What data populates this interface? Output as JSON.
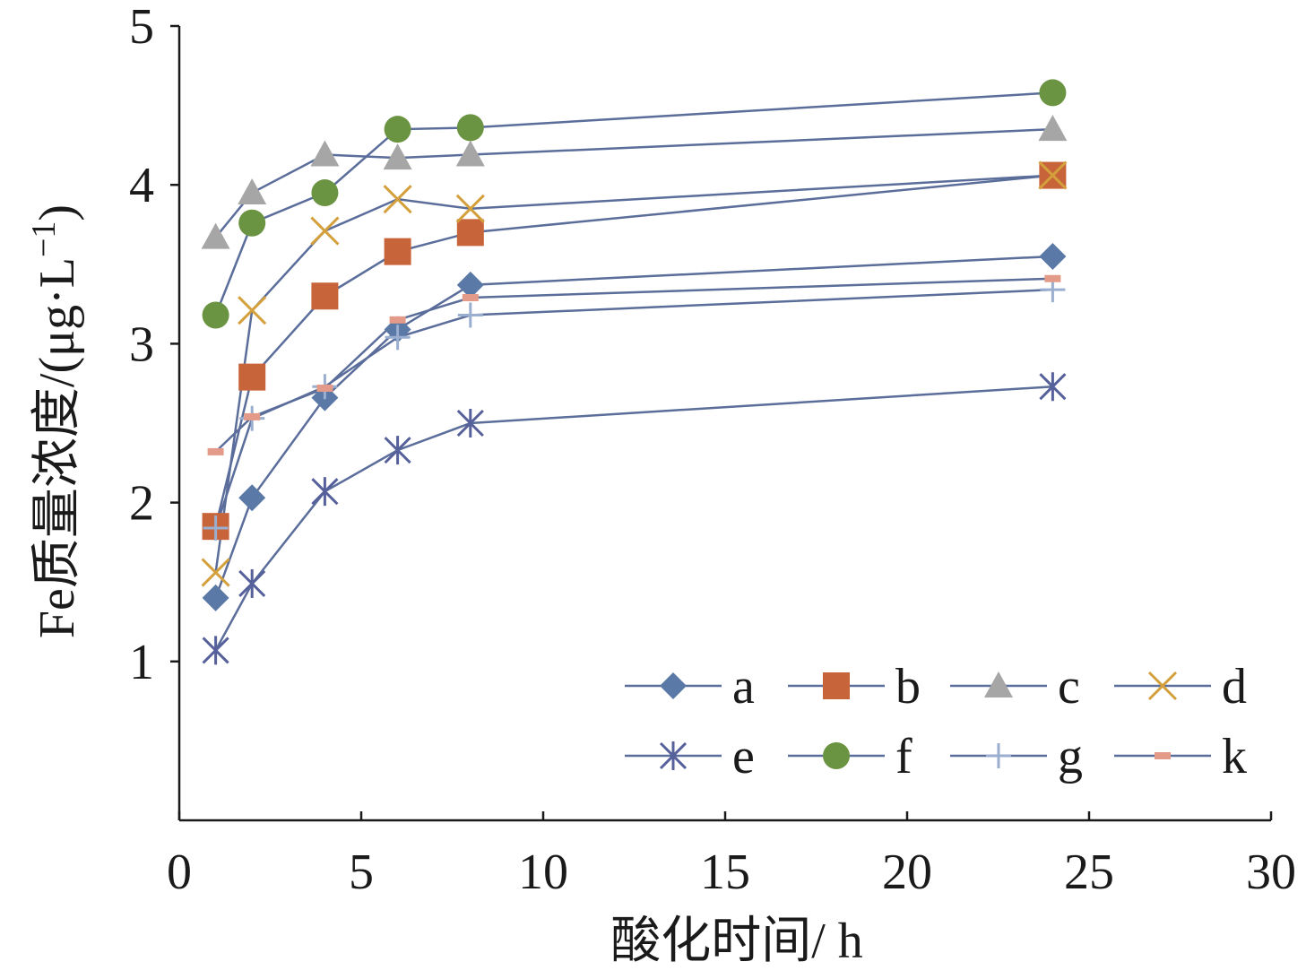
{
  "chart_data": {
    "type": "line",
    "xlabel": "酸化时间/ h",
    "ylabel": "Fe质量浓度/(μg·L",
    "ylabel_sup": "−1",
    "ylabel_close": ")",
    "xlim": [
      0,
      30
    ],
    "ylim": [
      0,
      5
    ],
    "xticks": [
      0,
      5,
      10,
      15,
      20,
      25,
      30
    ],
    "yticks": [
      1,
      2,
      3,
      4,
      5
    ],
    "grid": false,
    "legend_position": "bottom-right",
    "line_color": "#5b6d9a",
    "series": [
      {
        "name": "a",
        "marker": "diamond",
        "marker_color": "#5b79a6",
        "x": [
          1,
          2,
          4,
          6,
          8,
          24
        ],
        "y": [
          1.4,
          2.03,
          2.66,
          3.09,
          3.37,
          3.55
        ]
      },
      {
        "name": "b",
        "marker": "square",
        "marker_color": "#c8643a",
        "x": [
          1,
          2,
          4,
          6,
          8,
          24
        ],
        "y": [
          1.85,
          2.79,
          3.3,
          3.58,
          3.7,
          4.06
        ]
      },
      {
        "name": "c",
        "marker": "triangle",
        "marker_color": "#a6a6a6",
        "x": [
          1,
          2,
          4,
          6,
          8,
          24
        ],
        "y": [
          3.67,
          3.95,
          4.19,
          4.17,
          4.19,
          4.35
        ]
      },
      {
        "name": "d",
        "marker": "x",
        "marker_color": "#d4a03c",
        "x": [
          1,
          2,
          4,
          6,
          8,
          24
        ],
        "y": [
          1.56,
          3.21,
          3.71,
          3.91,
          3.85,
          4.06
        ]
      },
      {
        "name": "e",
        "marker": "asterisk",
        "marker_color": "#56609a",
        "x": [
          1,
          2,
          4,
          6,
          8,
          24
        ],
        "y": [
          1.07,
          1.49,
          2.07,
          2.33,
          2.5,
          2.73
        ]
      },
      {
        "name": "f",
        "marker": "circle",
        "marker_color": "#6b9442",
        "x": [
          1,
          2,
          4,
          6,
          8,
          24
        ],
        "y": [
          3.18,
          3.76,
          3.95,
          4.35,
          4.36,
          4.58
        ]
      },
      {
        "name": "g",
        "marker": "plus",
        "marker_color": "#9aaed0",
        "x": [
          1,
          2,
          4,
          6,
          8,
          24
        ],
        "y": [
          1.84,
          2.53,
          2.73,
          3.04,
          3.18,
          3.34
        ]
      },
      {
        "name": "k",
        "marker": "dash",
        "marker_color": "#e39a88",
        "x": [
          1,
          2,
          4,
          6,
          8,
          24
        ],
        "y": [
          2.32,
          2.54,
          2.72,
          3.15,
          3.29,
          3.41
        ]
      }
    ]
  }
}
